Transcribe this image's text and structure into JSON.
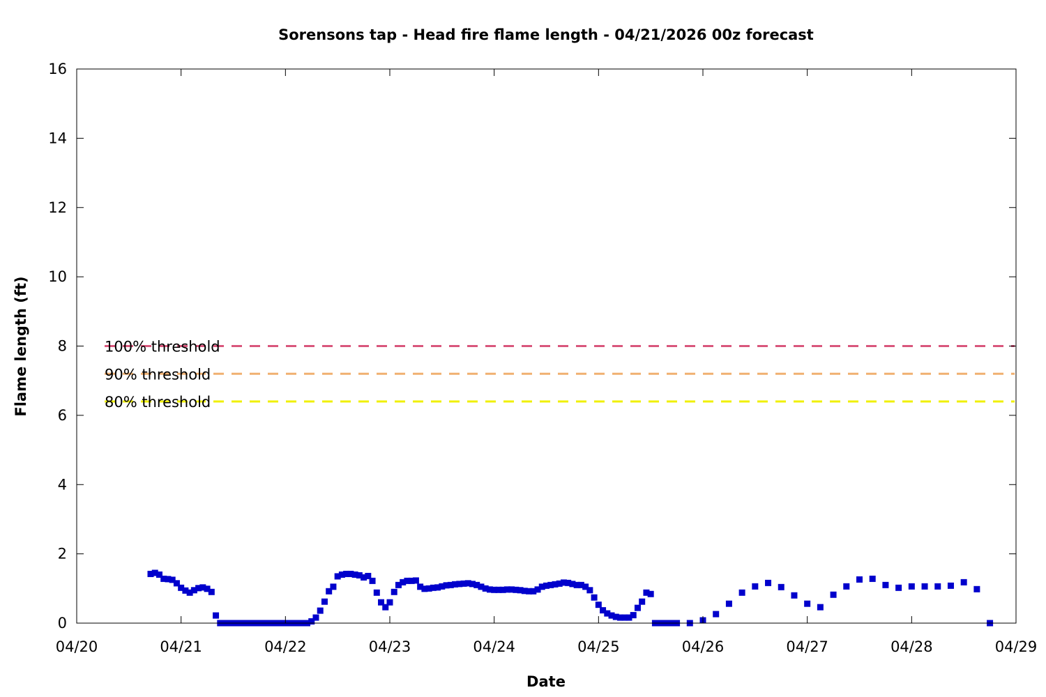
{
  "chart_data": {
    "type": "scatter",
    "title": "Sorensons tap - Head fire flame length - 04/21/2026 00z forecast",
    "xlabel": "Date",
    "ylabel": "Flame length (ft)",
    "xlim": [
      "04/20",
      "04/29"
    ],
    "ylim": [
      0,
      16
    ],
    "x_ticks": [
      "04/20",
      "04/21",
      "04/22",
      "04/23",
      "04/24",
      "04/25",
      "04/26",
      "04/27",
      "04/28",
      "04/29"
    ],
    "y_ticks": [
      0,
      2,
      4,
      6,
      8,
      10,
      12,
      14,
      16
    ],
    "grid": false,
    "thresholds": [
      {
        "name": "100% threshold",
        "value": 8.0,
        "color": "#d9577c"
      },
      {
        "name": "90% threshold",
        "value": 7.2,
        "color": "#f0b070"
      },
      {
        "name": "80% threshold",
        "value": 6.4,
        "color": "#f0f000"
      }
    ],
    "series": [
      {
        "color": "#0000cc",
        "x": [
          "04/20 17:00",
          "04/20 18:00",
          "04/20 19:00",
          "04/20 20:00",
          "04/20 21:00",
          "04/20 22:00",
          "04/20 23:00",
          "04/21 00:00",
          "04/21 01:00",
          "04/21 02:00",
          "04/21 03:00",
          "04/21 04:00",
          "04/21 05:00",
          "04/21 06:00",
          "04/21 07:00",
          "04/21 08:00",
          "04/21 09:00",
          "04/21 10:00",
          "04/21 11:00",
          "04/21 12:00",
          "04/21 13:00",
          "04/21 14:00",
          "04/21 15:00",
          "04/21 16:00",
          "04/21 17:00",
          "04/21 18:00",
          "04/21 19:00",
          "04/21 20:00",
          "04/21 21:00",
          "04/21 22:00",
          "04/21 23:00",
          "04/22 00:00",
          "04/22 01:00",
          "04/22 02:00",
          "04/22 03:00",
          "04/22 04:00",
          "04/22 05:00",
          "04/22 06:00",
          "04/22 07:00",
          "04/22 08:00",
          "04/22 09:00",
          "04/22 10:00",
          "04/22 11:00",
          "04/22 12:00",
          "04/22 13:00",
          "04/22 14:00",
          "04/22 15:00",
          "04/22 16:00",
          "04/22 17:00",
          "04/22 18:00",
          "04/22 19:00",
          "04/22 20:00",
          "04/22 21:00",
          "04/22 22:00",
          "04/22 23:00",
          "04/23 00:00",
          "04/23 01:00",
          "04/23 02:00",
          "04/23 03:00",
          "04/23 04:00",
          "04/23 05:00",
          "04/23 06:00",
          "04/23 07:00",
          "04/23 08:00",
          "04/23 09:00",
          "04/23 10:00",
          "04/23 11:00",
          "04/23 12:00",
          "04/23 13:00",
          "04/23 14:00",
          "04/23 15:00",
          "04/23 16:00",
          "04/23 17:00",
          "04/23 18:00",
          "04/23 19:00",
          "04/23 20:00",
          "04/23 21:00",
          "04/23 22:00",
          "04/23 23:00",
          "04/24 00:00",
          "04/24 01:00",
          "04/24 02:00",
          "04/24 03:00",
          "04/24 04:00",
          "04/24 05:00",
          "04/24 06:00",
          "04/24 07:00",
          "04/24 08:00",
          "04/24 09:00",
          "04/24 10:00",
          "04/24 11:00",
          "04/24 12:00",
          "04/24 13:00",
          "04/24 14:00",
          "04/24 15:00",
          "04/24 16:00",
          "04/24 17:00",
          "04/24 18:00",
          "04/24 19:00",
          "04/24 20:00",
          "04/24 21:00",
          "04/24 22:00",
          "04/24 23:00",
          "04/25 00:00",
          "04/25 01:00",
          "04/25 02:00",
          "04/25 03:00",
          "04/25 04:00",
          "04/25 05:00",
          "04/25 06:00",
          "04/25 07:00",
          "04/25 08:00",
          "04/25 09:00",
          "04/25 10:00",
          "04/25 11:00",
          "04/25 12:00",
          "04/25 13:00",
          "04/25 14:00",
          "04/25 15:00",
          "04/25 16:00",
          "04/25 17:00",
          "04/25 18:00",
          "04/25 21:00",
          "04/26 00:00",
          "04/26 03:00",
          "04/26 06:00",
          "04/26 09:00",
          "04/26 12:00",
          "04/26 15:00",
          "04/26 18:00",
          "04/26 21:00",
          "04/27 00:00",
          "04/27 03:00",
          "04/27 06:00",
          "04/27 09:00",
          "04/27 12:00",
          "04/27 15:00",
          "04/27 18:00",
          "04/27 21:00",
          "04/28 00:00",
          "04/28 03:00",
          "04/28 06:00",
          "04/28 09:00",
          "04/28 12:00",
          "04/28 15:00",
          "04/28 18:00"
        ],
        "y": [
          1.42,
          1.45,
          1.4,
          1.28,
          1.27,
          1.25,
          1.15,
          1.02,
          0.94,
          0.88,
          0.95,
          1.01,
          1.03,
          0.99,
          0.9,
          0.22,
          0.0,
          0.0,
          0.0,
          0.0,
          0.0,
          0.0,
          0.0,
          0.0,
          0.0,
          0.0,
          0.0,
          0.0,
          0.0,
          0.0,
          0.0,
          0.0,
          0.0,
          0.0,
          0.0,
          0.0,
          0.0,
          0.05,
          0.16,
          0.36,
          0.62,
          0.92,
          1.05,
          1.35,
          1.4,
          1.42,
          1.42,
          1.4,
          1.38,
          1.32,
          1.36,
          1.22,
          0.88,
          0.6,
          0.46,
          0.6,
          0.9,
          1.1,
          1.18,
          1.22,
          1.22,
          1.23,
          1.05,
          0.99,
          1.0,
          1.02,
          1.03,
          1.06,
          1.09,
          1.1,
          1.12,
          1.13,
          1.14,
          1.15,
          1.13,
          1.1,
          1.05,
          1.0,
          0.97,
          0.96,
          0.96,
          0.96,
          0.97,
          0.97,
          0.96,
          0.95,
          0.93,
          0.92,
          0.92,
          0.97,
          1.05,
          1.08,
          1.1,
          1.12,
          1.14,
          1.17,
          1.16,
          1.13,
          1.1,
          1.1,
          1.05,
          0.95,
          0.74,
          0.53,
          0.37,
          0.28,
          0.22,
          0.18,
          0.16,
          0.16,
          0.16,
          0.23,
          0.44,
          0.62,
          0.88,
          0.84,
          0.0,
          0.0,
          0.0,
          0.0,
          0.0,
          0.0,
          0.0,
          0.08,
          0.26,
          0.56,
          0.88,
          1.06,
          1.16,
          1.04,
          0.8,
          0.56,
          0.46,
          0.82,
          1.06,
          1.26,
          1.28,
          1.1,
          1.02,
          1.06,
          1.06,
          1.06,
          1.08,
          1.18,
          0.98,
          0.0
        ]
      }
    ]
  }
}
